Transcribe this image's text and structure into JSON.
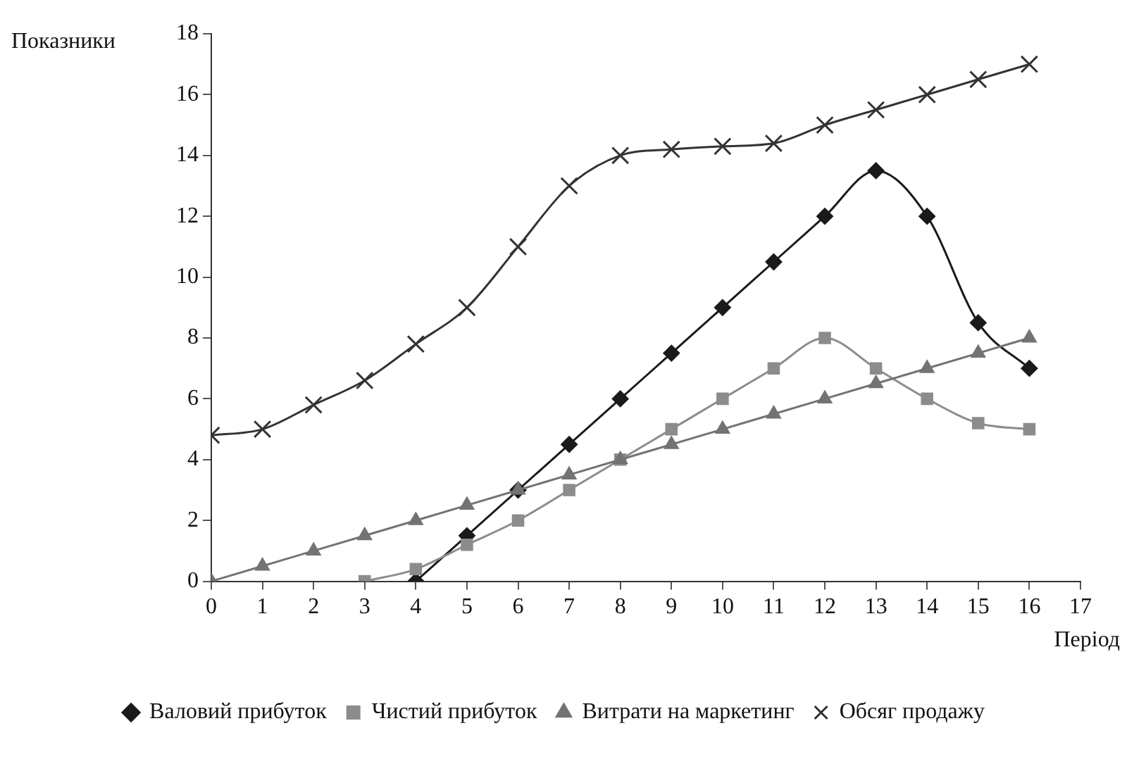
{
  "chart_data": {
    "type": "line",
    "xlabel": "Період",
    "ylabel": "Показники",
    "xlim": [
      0,
      17
    ],
    "xticks": [
      0,
      1,
      2,
      3,
      4,
      5,
      6,
      7,
      8,
      9,
      10,
      11,
      12,
      13,
      14,
      15,
      16,
      17
    ],
    "ylim": [
      0,
      18
    ],
    "yticks": [
      0,
      2,
      4,
      6,
      8,
      10,
      12,
      14,
      16,
      18
    ],
    "grid": false,
    "legend": "bottom",
    "series": [
      {
        "name": "Валовий прибуток",
        "color": "#1a1a1a",
        "marker": "diamond",
        "x": [
          4,
          5,
          6,
          7,
          8,
          9,
          10,
          11,
          12,
          13,
          14,
          15,
          16
        ],
        "values": [
          0,
          1.5,
          3,
          4.5,
          6,
          7.5,
          9,
          10.5,
          12,
          13.5,
          12,
          8.5,
          7
        ]
      },
      {
        "name": "Чистий прибуток",
        "color": "#8c8c8c",
        "marker": "square",
        "x": [
          3,
          4,
          5,
          6,
          7,
          8,
          9,
          10,
          11,
          12,
          13,
          14,
          15,
          16
        ],
        "values": [
          0,
          0.4,
          1.2,
          2,
          3,
          4,
          5,
          6,
          7,
          8,
          7,
          6,
          5.2,
          5
        ]
      },
      {
        "name": "Витрати на маркетинг",
        "color": "#737373",
        "marker": "triangle",
        "x": [
          0,
          1,
          2,
          3,
          4,
          5,
          6,
          7,
          8,
          9,
          10,
          11,
          12,
          13,
          14,
          15,
          16
        ],
        "values": [
          0,
          0.5,
          1,
          1.5,
          2,
          2.5,
          3,
          3.5,
          4,
          4.5,
          5,
          5.5,
          6,
          6.5,
          7,
          7.5,
          8
        ]
      },
      {
        "name": "Обсяг продажу",
        "color": "#333333",
        "marker": "cross",
        "x": [
          0,
          1,
          2,
          3,
          4,
          5,
          6,
          7,
          8,
          9,
          10,
          11,
          12,
          13,
          14,
          15,
          16
        ],
        "values": [
          4.8,
          5,
          5.8,
          6.6,
          7.8,
          9,
          11,
          13,
          14,
          14.2,
          14.3,
          14.4,
          15,
          15.5,
          16,
          16.5,
          17
        ]
      }
    ]
  }
}
